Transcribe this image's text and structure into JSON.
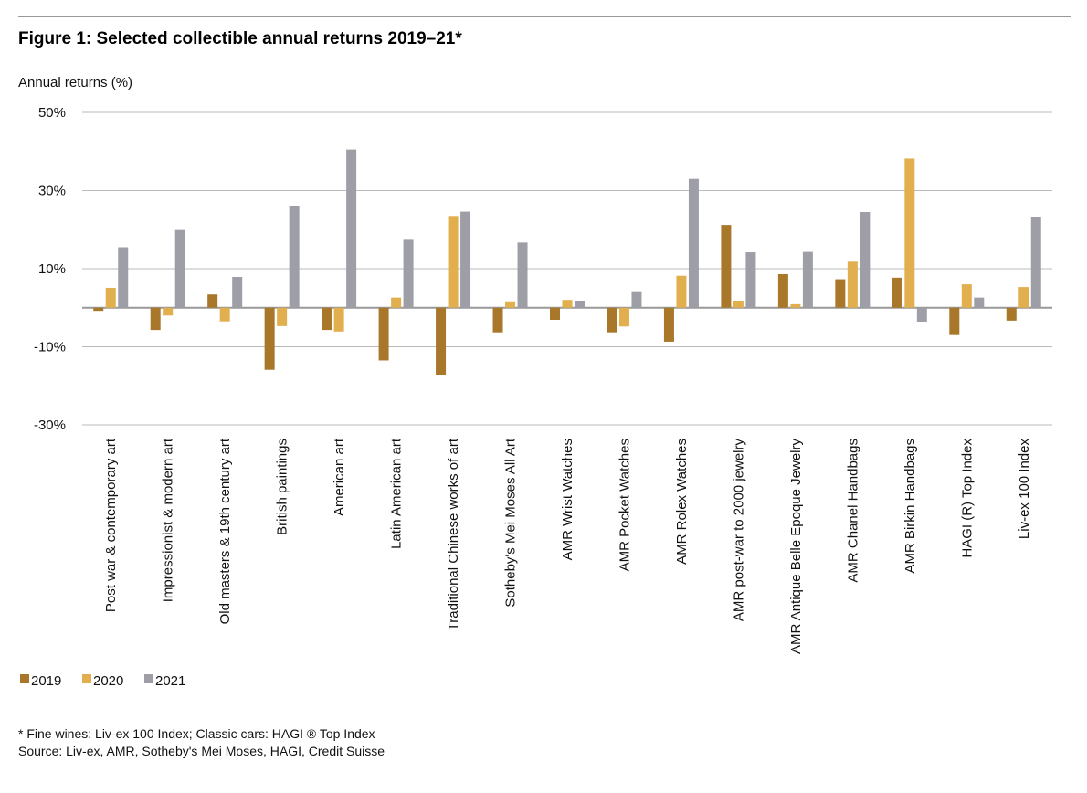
{
  "title": "Figure 1: Selected collectible annual returns 2019–21*",
  "footnotes": [
    "* Fine wines: Liv-ex 100 Index; Classic cars: HAGI ® Top Index",
    "Source: Liv-ex, AMR, Sotheby's Mei Moses, HAGI, Credit Suisse"
  ],
  "chart_data": {
    "type": "bar",
    "ylabel": "Annual returns (%)",
    "ylim": [
      -30,
      50
    ],
    "yticks": [
      50,
      30,
      10,
      -10,
      -30
    ],
    "ytick_labels": [
      "50%",
      "30%",
      "10%",
      "-10%",
      "-30%"
    ],
    "grid": true,
    "legend_position": "bottom-left",
    "categories": [
      "Post war & contemporary art",
      "Impressionist & modern art",
      "Old masters & 19th century art",
      "British paintings",
      "American art",
      "Latin American art",
      "Traditional Chinese works of art",
      "Sotheby's Mei Moses All Art",
      "AMR Wrist Watches",
      "AMR Pocket Watches",
      "AMR Rolex Watches",
      "AMR post-war to 2000 jewelry",
      "AMR Antique Belle Epoque Jewelry",
      "AMR Chanel Handbags",
      "AMR Birkin Handbags",
      "HAGI (R) Top Index",
      "Liv-ex 100 Index"
    ],
    "series": [
      {
        "name": "2019",
        "color": "#A8772A",
        "values": [
          -0.8,
          -5.7,
          3.4,
          -15.9,
          -5.7,
          -13.5,
          -17.2,
          -6.3,
          -3.1,
          -6.3,
          -8.7,
          21.2,
          8.6,
          7.3,
          7.7,
          -7.0,
          -3.3
        ]
      },
      {
        "name": "2020",
        "color": "#E2AF4E",
        "values": [
          5.1,
          -2.0,
          -3.5,
          -4.7,
          -6.1,
          2.6,
          23.5,
          1.4,
          2.0,
          -4.8,
          8.2,
          1.8,
          0.9,
          11.8,
          38.2,
          6.0,
          5.3
        ]
      },
      {
        "name": "2021",
        "color": "#9E9EA6",
        "values": [
          15.5,
          19.9,
          7.9,
          26.0,
          40.5,
          17.4,
          24.6,
          16.7,
          1.6,
          4.0,
          33.0,
          14.2,
          14.3,
          24.5,
          -3.7,
          2.6,
          23.1
        ]
      }
    ]
  }
}
